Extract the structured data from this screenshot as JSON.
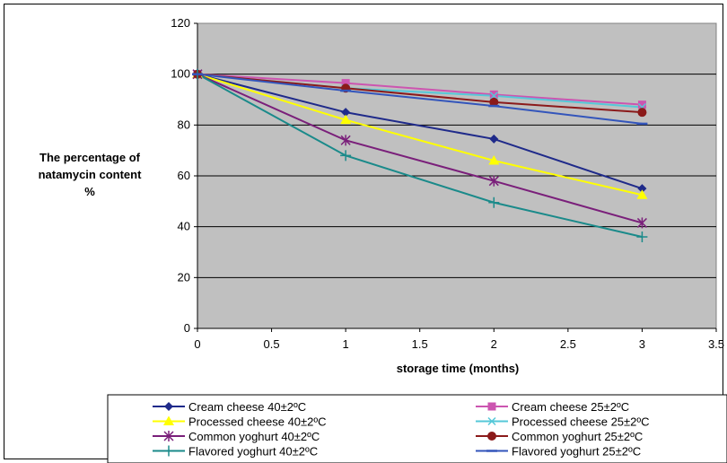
{
  "chart_data": {
    "type": "line",
    "title": "",
    "xlabel": "storage time (months)",
    "ylabel": [
      "The percentage of",
      "natamycin content",
      "%"
    ],
    "xlim": [
      0,
      3.5
    ],
    "ylim": [
      0,
      120
    ],
    "x_ticks": [
      "0",
      "0.5",
      "1",
      "1.5",
      "2",
      "2.5",
      "3",
      "3.5"
    ],
    "y_ticks": [
      "0",
      "20",
      "40",
      "60",
      "80",
      "100",
      "120"
    ],
    "grid": "horizontal",
    "plot_background": "#c0c0c0",
    "legend_position": "bottom",
    "x": [
      0,
      1,
      2,
      3
    ],
    "series": [
      {
        "name": "Cream cheese 40±2ºC",
        "values": [
          100,
          85,
          74.5,
          55
        ],
        "color": "#1f2a8a",
        "marker": "diamond"
      },
      {
        "name": "Cream cheese 25±2ºC",
        "values": [
          100,
          96.5,
          92,
          88
        ],
        "color": "#cc55b0",
        "marker": "square"
      },
      {
        "name": "Processed cheese 40±2ºC",
        "values": [
          100,
          82,
          66,
          52.5
        ],
        "color": "#ffff00",
        "marker": "triangle"
      },
      {
        "name": "Processed cheese 25±2ºC",
        "values": [
          100,
          94.5,
          91.5,
          87
        ],
        "color": "#55c8d8",
        "marker": "x"
      },
      {
        "name": "Common yoghurt 40±2ºC",
        "values": [
          100,
          74,
          58,
          41.5
        ],
        "color": "#7a1f7a",
        "marker": "star"
      },
      {
        "name": "Common yoghurt 25±2ºC",
        "values": [
          100,
          94.5,
          89,
          85
        ],
        "color": "#8b1a1a",
        "marker": "circle"
      },
      {
        "name": "Flavored yoghurt 40±2ºC",
        "values": [
          100,
          68,
          49.5,
          36
        ],
        "color": "#1a8a8a",
        "marker": "plus"
      },
      {
        "name": "Flavored yoghurt 25±2ºC",
        "values": [
          100,
          93.5,
          87.5,
          80.5
        ],
        "color": "#3355bb",
        "marker": "dash"
      }
    ]
  }
}
